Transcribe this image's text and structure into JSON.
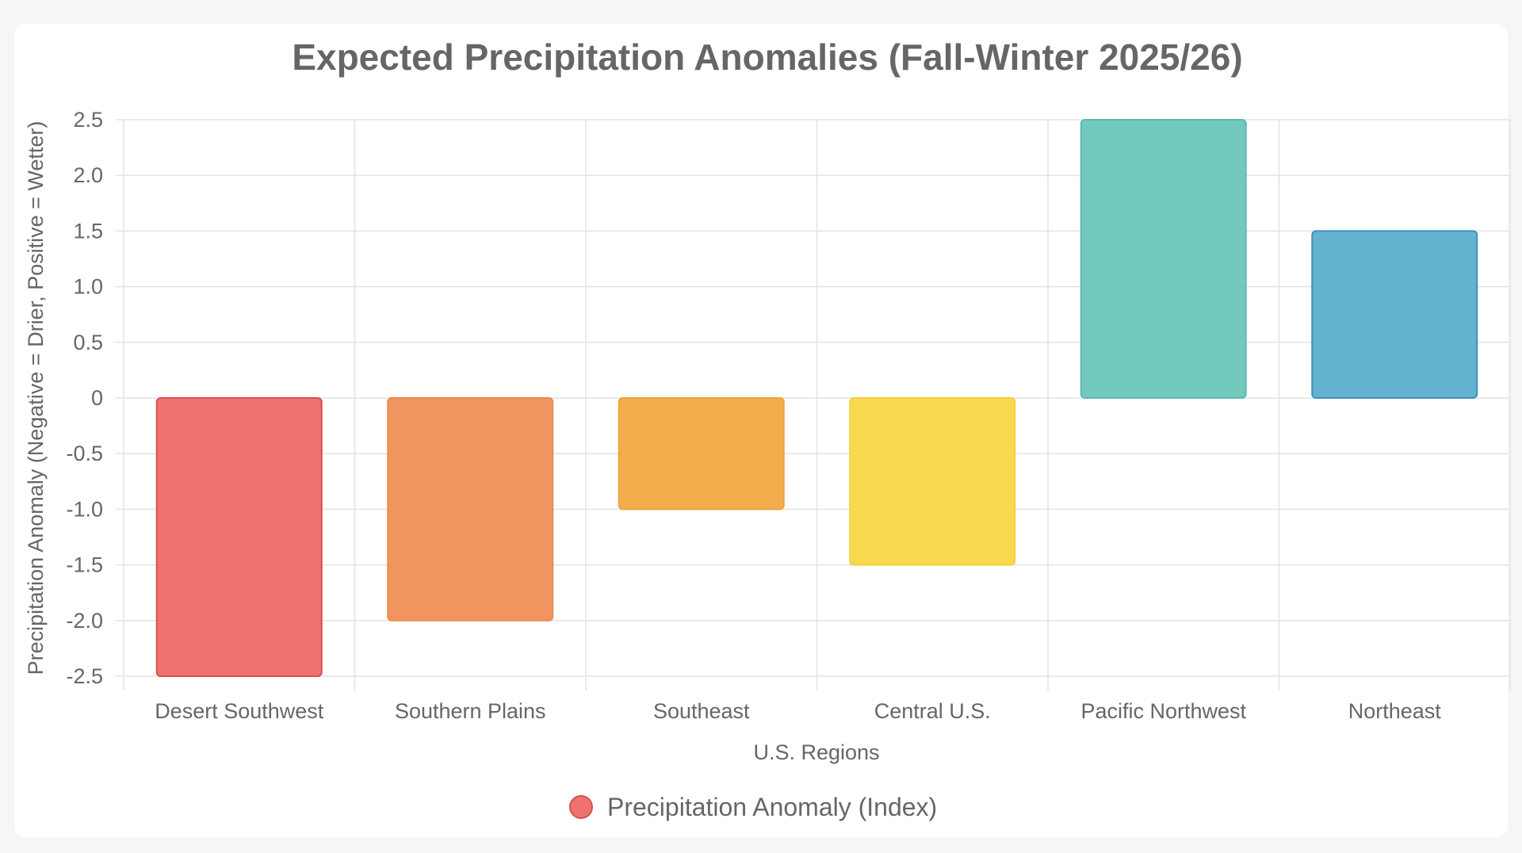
{
  "chart_data": {
    "type": "bar",
    "title": "Expected Precipitation Anomalies (Fall-Winter 2025/26)",
    "xlabel": "U.S. Regions",
    "ylabel": "Precipitation Anomaly (Negative = Drier, Positive = Wetter)",
    "categories": [
      "Desert Southwest",
      "Southern Plains",
      "Southeast",
      "Central U.S.",
      "Pacific Northwest",
      "Northeast"
    ],
    "series": [
      {
        "name": "Precipitation Anomaly (Index)",
        "values": [
          -2.5,
          -2.0,
          -1.0,
          -1.5,
          2.5,
          1.5
        ]
      }
    ],
    "ylim": [
      -2.5,
      2.5
    ],
    "yticks": [
      2.5,
      2.0,
      1.5,
      1.0,
      0.5,
      0,
      -0.5,
      -1.0,
      -1.5,
      -2.0,
      -2.5
    ],
    "ytick_labels": [
      "2.5",
      "2.0",
      "1.5",
      "1.0",
      "0.5",
      "0",
      "-0.5",
      "-1.0",
      "-1.5",
      "-2.0",
      "-2.5"
    ],
    "grid": true,
    "legend_position": "bottom",
    "bar_fill_colors": [
      "#ee7370",
      "#f09560",
      "#f2ae4d",
      "#f8d84c",
      "#73c8be",
      "#64b3ce"
    ],
    "bar_border_colors": [
      "#d9514e",
      "#ec8a4c",
      "#efa23c",
      "#f5cf3e",
      "#5bbcae",
      "#3f8fc0"
    ],
    "legend_color": "#ee7370",
    "legend_border_color": "#d9514e"
  }
}
